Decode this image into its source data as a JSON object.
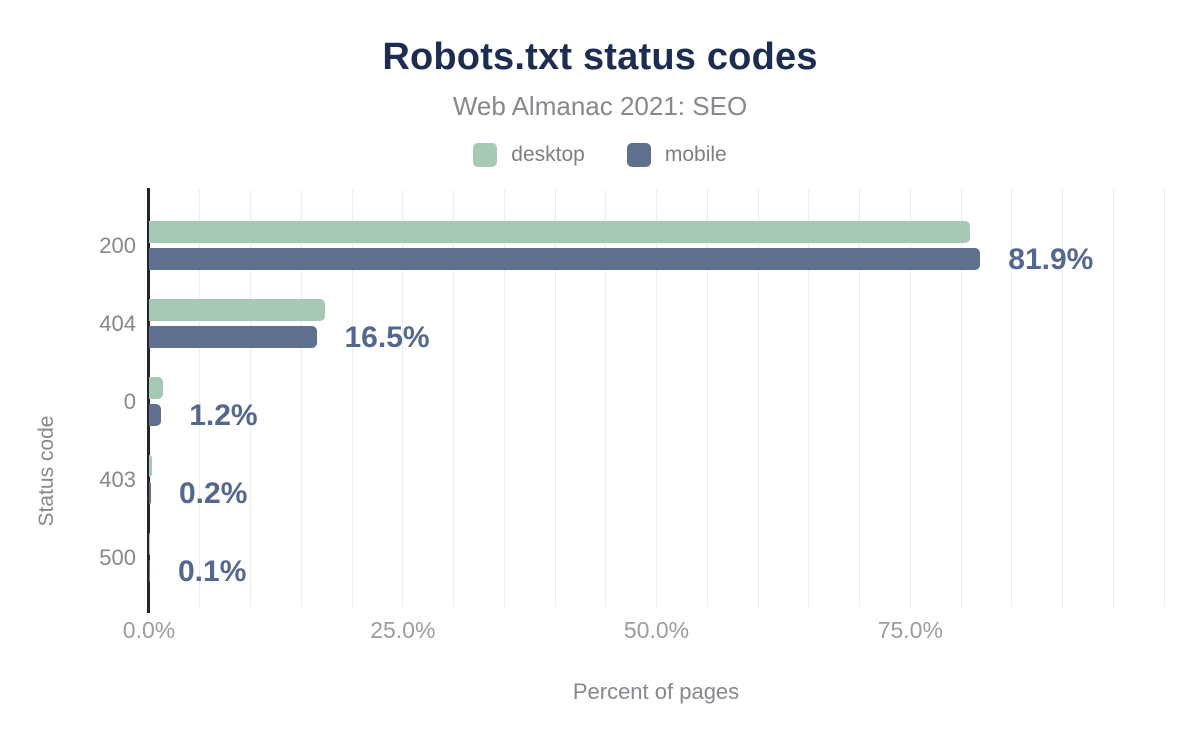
{
  "figure": {
    "title": "Robots.txt status codes",
    "subtitle": "Web Almanac 2021: SEO"
  },
  "legend": [
    {
      "name": "desktop",
      "color": "#a7c8b5"
    },
    {
      "name": "mobile",
      "color": "#5e708d"
    }
  ],
  "chart_data": {
    "type": "bar",
    "orientation": "horizontal",
    "title": "Robots.txt status codes",
    "subtitle": "Web Almanac 2021: SEO",
    "categories": [
      "200",
      "404",
      "0",
      "403",
      "500"
    ],
    "series": [
      {
        "name": "desktop",
        "color": "#a7c8b5",
        "values": [
          80.9,
          17.3,
          1.4,
          0.3,
          0.1
        ]
      },
      {
        "name": "mobile",
        "color": "#5e708d",
        "values": [
          81.9,
          16.5,
          1.2,
          0.2,
          0.1
        ]
      }
    ],
    "value_labels": [
      "81.9%",
      "16.5%",
      "1.2%",
      "0.2%",
      "0.1%"
    ],
    "value_label_series": "mobile",
    "xlabel": "Percent of pages",
    "ylabel": "Status code",
    "x_ticks": [
      {
        "label": "0.0%",
        "value": 0
      },
      {
        "label": "25.0%",
        "value": 25
      },
      {
        "label": "50.0%",
        "value": 50
      },
      {
        "label": "75.0%",
        "value": 75
      }
    ],
    "xlim": [
      0,
      100
    ],
    "grid_step_percent": 5,
    "grid": true,
    "legend_position": "top",
    "colors": {
      "title": "#1d2c51",
      "subtitle_text": "#85888e",
      "axis_line": "#262626",
      "gridline": "#ececec",
      "value_label_text": "#54688f",
      "x_tick_text": "#9a9da3",
      "y_tick_text": "#85888e",
      "background": "#ffffff"
    }
  }
}
